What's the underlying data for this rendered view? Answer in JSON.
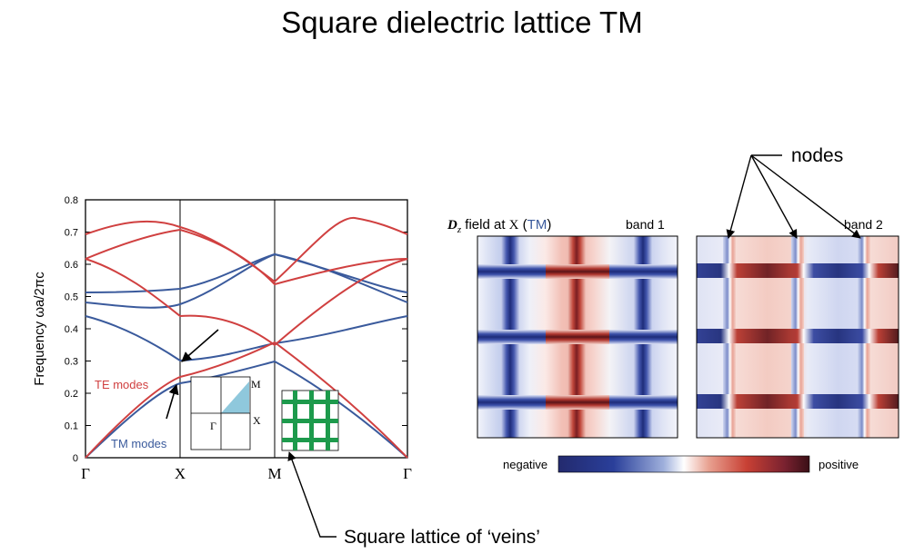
{
  "title": "Square dielectric lattice TM",
  "band_plot": {
    "ylabel": "Frequency  ωa/2πc",
    "yticks": [
      "0",
      "0.1",
      "0.2",
      "0.3",
      "0.4",
      "0.5",
      "0.6",
      "0.7",
      "0.8"
    ],
    "ylim": [
      0,
      0.8
    ],
    "kpoints": [
      "Γ",
      "X",
      "M",
      "Γ"
    ],
    "te_label": "TE modes",
    "tm_label": "TM modes",
    "colors": {
      "te": "#d04040",
      "tm": "#3a5a9c"
    }
  },
  "brillouin_zone": {
    "labels": [
      "M",
      "X",
      "Γ"
    ],
    "fill": "#8fc8dc"
  },
  "veins_icon": {
    "color": "#1d9a4c"
  },
  "field_panel": {
    "field_prefix": "D",
    "field_subscript": "z",
    "field_mid": " field at ",
    "field_point": "X",
    "field_paren_open": "  (",
    "field_mode": "TM",
    "field_paren_close": ")",
    "band1": "band  1",
    "band2": "band  2",
    "colorbar_negative": "negative",
    "colorbar_positive": "positive"
  },
  "annotations": {
    "nodes": "nodes",
    "veins": "Square lattice of ‘veins’"
  },
  "chart_data": {
    "type": "line",
    "x": [
      "Γ",
      "X",
      "M",
      "Γ"
    ],
    "ylabel": "Frequency  ωa/2πc",
    "ylim": [
      0,
      0.8
    ],
    "series": [
      {
        "name": "TM modes",
        "values_band1": [
          0,
          0.23,
          0.3,
          0
        ],
        "values_band2": [
          0.44,
          0.3,
          0.35,
          0.44
        ],
        "values_band3": [
          0.48,
          0.47,
          0.63,
          0.48
        ],
        "values_band4": [
          0.51,
          0.52,
          0.63,
          0.51
        ]
      },
      {
        "name": "TE modes",
        "values_band1": [
          0,
          0.25,
          0.36,
          0
        ],
        "values_band2": [
          0.62,
          0.44,
          0.36,
          0.62
        ],
        "values_band3": [
          0.62,
          0.71,
          0.53,
          0.62
        ],
        "values_band4": [
          0.69,
          0.72,
          0.54,
          0.69
        ]
      }
    ]
  }
}
